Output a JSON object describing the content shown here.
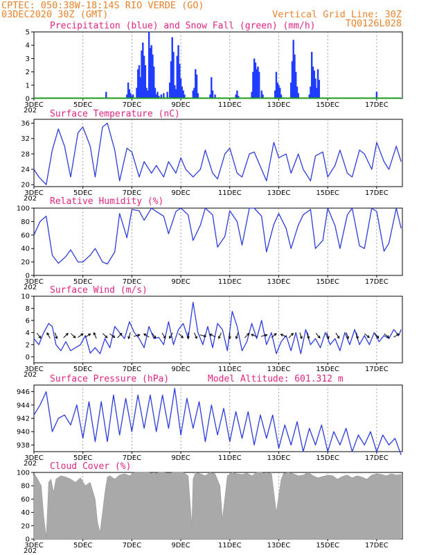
{
  "header": {
    "line1": "CPTEC:   050:38W-18:14S  RIO VERDE (GO)",
    "line2": "03DEC2020 30Z (GMT)",
    "grid_note": "Vertical Grid Line: 30Z",
    "model_id": "TQ0126L028"
  },
  "colors": {
    "header": "#e8822a",
    "titles": "#e0237f",
    "precip": "#1f3cff",
    "snow": "#1a9a1a",
    "line": "#2b3bdc",
    "cloud": "#a9a9a9",
    "arrows": "#000000"
  },
  "x_axis": {
    "labels": [
      "3DEC",
      "5DEC",
      "7DEC",
      "9DEC",
      "11DEC",
      "13DEC",
      "15DEC",
      "17DEC"
    ],
    "year_fragment": "202",
    "start_day": 3,
    "end_day": 18.05,
    "grid_days": [
      5,
      7,
      9,
      11,
      13,
      15,
      17
    ]
  },
  "chart_data": [
    {
      "type": "bar",
      "title": "Precipitation (blue) and Snow Fall (green) (mm/h)",
      "ylim": [
        0,
        5
      ],
      "yticks": [
        "0",
        "1",
        "2",
        "3",
        "4",
        "5"
      ],
      "series": [
        {
          "name": "Precipitation",
          "x": [
            5.95,
            6.8,
            6.85,
            6.9,
            6.95,
            7.0,
            7.05,
            7.2,
            7.25,
            7.3,
            7.35,
            7.4,
            7.45,
            7.5,
            7.55,
            7.6,
            7.65,
            7.7,
            7.75,
            7.8,
            7.85,
            7.9,
            7.95,
            8.0,
            8.05,
            8.1,
            8.2,
            8.3,
            8.45,
            8.55,
            8.6,
            8.65,
            8.7,
            8.75,
            8.8,
            8.85,
            8.9,
            8.95,
            9.0,
            9.05,
            9.1,
            9.15,
            9.5,
            9.55,
            9.6,
            9.65,
            9.7,
            10.2,
            10.25,
            10.3,
            10.4,
            11.25,
            11.3,
            11.35,
            11.9,
            11.95,
            12.0,
            12.05,
            12.1,
            12.15,
            12.2,
            12.3,
            12.35,
            12.85,
            12.9,
            12.95,
            13.0,
            13.05,
            13.1,
            13.5,
            13.55,
            13.6,
            13.65,
            13.7,
            13.75,
            13.8,
            14.25,
            14.3,
            14.35,
            14.4,
            14.45,
            14.5,
            14.55,
            14.6,
            14.65,
            17.0
          ],
          "values": [
            0.5,
            0.3,
            1.2,
            0.7,
            0.4,
            0.2,
            0.3,
            0.8,
            2.2,
            2.5,
            1.6,
            3.6,
            4.2,
            3.2,
            2.5,
            0.8,
            0.6,
            5.0,
            3.8,
            4.0,
            3.3,
            2.4,
            0.8,
            0.3,
            0.5,
            0.2,
            0.3,
            0.4,
            0.5,
            1.2,
            2.8,
            4.6,
            3.5,
            1.0,
            0.7,
            3.2,
            4.0,
            2.6,
            1.5,
            0.9,
            0.6,
            0.3,
            0.6,
            0.8,
            2.2,
            1.8,
            0.4,
            0.3,
            1.6,
            0.6,
            0.3,
            0.3,
            0.6,
            0.2,
            0.5,
            2.0,
            3.0,
            2.7,
            2.2,
            2.4,
            2.0,
            0.6,
            0.3,
            0.6,
            2.0,
            1.2,
            1.0,
            0.8,
            0.3,
            1.2,
            2.8,
            4.4,
            3.3,
            2.0,
            0.9,
            0.4,
            0.3,
            0.9,
            3.5,
            2.4,
            2.1,
            1.5,
            0.8,
            2.2,
            1.4,
            0.5
          ]
        },
        {
          "name": "Snow Fall",
          "x": [
            3.0,
            18.0
          ],
          "values": [
            0,
            0
          ]
        }
      ]
    },
    {
      "type": "line",
      "title": "Surface Temperature (nC)",
      "ylim": [
        19.5,
        37
      ],
      "yticks": [
        "20",
        "24",
        "28",
        "32",
        "36"
      ],
      "x": [
        3.0,
        3.2,
        3.5,
        3.75,
        4.0,
        4.25,
        4.5,
        4.8,
        5.0,
        5.3,
        5.5,
        5.8,
        6.0,
        6.3,
        6.5,
        6.8,
        7.0,
        7.3,
        7.5,
        7.8,
        8.0,
        8.3,
        8.5,
        8.8,
        9.0,
        9.2,
        9.5,
        9.8,
        10.0,
        10.3,
        10.5,
        10.8,
        11.0,
        11.3,
        11.5,
        11.8,
        12.0,
        12.3,
        12.5,
        12.8,
        13.0,
        13.3,
        13.5,
        13.8,
        14.0,
        14.3,
        14.5,
        14.8,
        15.0,
        15.3,
        15.5,
        15.8,
        16.0,
        16.3,
        16.5,
        16.8,
        17.0,
        17.3,
        17.5,
        17.8,
        18.0
      ],
      "values": [
        24.0,
        22.0,
        20.0,
        29.0,
        34.5,
        30.0,
        22.0,
        33.5,
        35.0,
        30.0,
        22.0,
        35.0,
        36.0,
        29.0,
        21.0,
        29.5,
        28.5,
        22.0,
        26.0,
        23.0,
        25.0,
        22.0,
        26.0,
        23.0,
        27.0,
        24.0,
        22.0,
        24.0,
        29.0,
        23.0,
        21.5,
        28.0,
        29.5,
        23.0,
        22.0,
        28.0,
        28.5,
        24.0,
        21.0,
        31.0,
        27.0,
        28.0,
        23.0,
        28.0,
        24.0,
        21.0,
        27.5,
        28.5,
        22.0,
        25.0,
        29.0,
        23.0,
        22.0,
        29.0,
        28.0,
        24.0,
        31.0,
        26.0,
        24.0,
        30.0,
        26.0
      ]
    },
    {
      "type": "line",
      "title": "Relative Humidity (%)",
      "ylim": [
        0,
        100
      ],
      "yticks": [
        "0",
        "20",
        "40",
        "60",
        "80",
        "100"
      ],
      "x": [
        3.0,
        3.25,
        3.5,
        3.75,
        4.0,
        4.3,
        4.5,
        4.8,
        5.0,
        5.3,
        5.5,
        5.8,
        6.0,
        6.3,
        6.5,
        6.8,
        7.0,
        7.3,
        7.5,
        7.8,
        8.0,
        8.3,
        8.5,
        8.8,
        9.0,
        9.3,
        9.5,
        9.8,
        10.0,
        10.3,
        10.5,
        10.8,
        11.0,
        11.3,
        11.5,
        11.8,
        12.0,
        12.3,
        12.5,
        12.8,
        13.0,
        13.3,
        13.5,
        13.8,
        14.0,
        14.3,
        14.5,
        14.8,
        15.0,
        15.3,
        15.5,
        15.8,
        16.0,
        16.3,
        16.5,
        16.8,
        17.0,
        17.3,
        17.5,
        17.8,
        18.0
      ],
      "values": [
        60.0,
        80.0,
        88.0,
        30.0,
        18.0,
        28.0,
        38.0,
        20.0,
        20.0,
        30.0,
        40.0,
        20.0,
        17.0,
        35.0,
        92.0,
        56.0,
        98.0,
        96.0,
        82.0,
        100.0,
        95.0,
        88.0,
        62.0,
        95.0,
        100.0,
        90.0,
        52.0,
        75.0,
        100.0,
        90.0,
        42.0,
        58.0,
        96.0,
        80.0,
        45.0,
        100.0,
        100.0,
        88.0,
        35.0,
        76.0,
        92.0,
        70.0,
        40.0,
        75.0,
        90.0,
        98.0,
        40.0,
        52.0,
        100.0,
        74.0,
        40.0,
        90.0,
        100.0,
        44.0,
        40.0,
        100.0,
        95.0,
        36.0,
        48.0,
        100.0,
        70.0
      ]
    },
    {
      "type": "line",
      "title": "Surface Wind (m/s)",
      "ylim": [
        -1,
        10
      ],
      "yticks": [
        "0",
        "2",
        "4",
        "6",
        "8",
        "10"
      ],
      "x": [
        3.0,
        3.2,
        3.4,
        3.6,
        3.75,
        3.9,
        4.1,
        4.3,
        4.5,
        4.7,
        4.9,
        5.1,
        5.3,
        5.5,
        5.7,
        5.9,
        6.1,
        6.3,
        6.5,
        6.7,
        6.9,
        7.1,
        7.3,
        7.5,
        7.7,
        7.9,
        8.1,
        8.3,
        8.5,
        8.7,
        8.9,
        9.1,
        9.3,
        9.5,
        9.7,
        9.9,
        10.1,
        10.3,
        10.5,
        10.7,
        10.9,
        11.1,
        11.3,
        11.5,
        11.7,
        11.9,
        12.1,
        12.3,
        12.5,
        12.7,
        12.9,
        13.1,
        13.3,
        13.5,
        13.7,
        13.9,
        14.1,
        14.3,
        14.5,
        14.7,
        14.9,
        15.1,
        15.3,
        15.5,
        15.7,
        15.9,
        16.1,
        16.3,
        16.5,
        16.7,
        16.9,
        17.1,
        17.3,
        17.5,
        17.7,
        17.9,
        18.0
      ],
      "values": [
        3.0,
        2.0,
        4.0,
        5.5,
        5.0,
        2.0,
        1.0,
        2.5,
        1.0,
        1.5,
        2.0,
        3.5,
        0.6,
        1.5,
        0.5,
        3.0,
        1.5,
        5.0,
        4.0,
        3.0,
        5.8,
        4.0,
        3.0,
        1.5,
        5.0,
        3.0,
        3.2,
        2.0,
        5.8,
        2.0,
        4.5,
        5.5,
        3.0,
        9.0,
        4.0,
        2.0,
        5.0,
        1.5,
        5.5,
        4.5,
        1.0,
        7.5,
        5.0,
        1.0,
        2.5,
        5.5,
        3.0,
        6.0,
        2.0,
        4.0,
        0.5,
        2.5,
        3.5,
        1.0,
        4.0,
        0.5,
        4.5,
        2.0,
        3.0,
        1.5,
        4.0,
        2.0,
        3.0,
        1.0,
        4.0,
        2.0,
        4.5,
        2.0,
        3.5,
        2.0,
        4.0,
        2.5,
        3.5,
        3.0,
        4.5,
        3.5,
        4.5
      ]
    },
    {
      "type": "line",
      "title": "Surface Pressure (hPa)",
      "annotation": "Model Altitude: 601.312 m",
      "ylim": [
        937,
        947
      ],
      "yticks": [
        "938",
        "940",
        "942",
        "944",
        "946"
      ],
      "x": [
        3.0,
        3.25,
        3.5,
        3.75,
        4.0,
        4.25,
        4.5,
        4.75,
        5.0,
        5.25,
        5.5,
        5.75,
        6.0,
        6.25,
        6.5,
        6.75,
        7.0,
        7.25,
        7.5,
        7.75,
        8.0,
        8.25,
        8.5,
        8.75,
        9.0,
        9.25,
        9.5,
        9.75,
        10.0,
        10.25,
        10.5,
        10.75,
        11.0,
        11.25,
        11.5,
        11.75,
        12.0,
        12.25,
        12.5,
        12.75,
        13.0,
        13.25,
        13.5,
        13.75,
        14.0,
        14.25,
        14.5,
        14.75,
        15.0,
        15.25,
        15.5,
        15.75,
        16.0,
        16.25,
        16.5,
        16.75,
        17.0,
        17.25,
        17.5,
        17.75,
        18.0
      ],
      "values": [
        942.5,
        944.0,
        946.0,
        940.0,
        942.0,
        942.5,
        941.0,
        944.0,
        939.0,
        944.5,
        938.5,
        944.5,
        938.5,
        945.5,
        939.5,
        945.0,
        940.0,
        945.5,
        940.5,
        945.5,
        940.0,
        945.5,
        940.5,
        946.5,
        939.5,
        945.0,
        940.5,
        944.5,
        938.5,
        944.0,
        939.5,
        943.5,
        938.5,
        943.0,
        939.0,
        943.0,
        938.0,
        942.5,
        939.0,
        942.5,
        937.5,
        941.0,
        938.0,
        941.5,
        937.0,
        940.5,
        938.0,
        941.0,
        937.0,
        940.0,
        938.0,
        940.5,
        937.0,
        939.5,
        938.0,
        940.0,
        937.0,
        939.5,
        938.0,
        939.0,
        936.5
      ]
    },
    {
      "type": "area",
      "title": "Cloud Cover (%)",
      "ylim": [
        0,
        100
      ],
      "yticks": [
        "0",
        "20",
        "40",
        "60",
        "80",
        "100"
      ],
      "x": [
        3.0,
        3.05,
        3.15,
        3.3,
        3.4,
        3.5,
        3.55,
        3.6,
        3.7,
        3.8,
        3.9,
        4.1,
        4.3,
        4.5,
        4.7,
        4.9,
        5.1,
        5.3,
        5.5,
        5.6,
        5.7,
        5.8,
        5.9,
        6.0,
        6.1,
        6.3,
        6.5,
        6.7,
        6.9,
        7.1,
        7.3,
        7.5,
        7.7,
        7.9,
        8.1,
        8.3,
        8.5,
        8.7,
        8.9,
        9.1,
        9.3,
        9.45,
        9.5,
        9.6,
        9.8,
        10.0,
        10.2,
        10.4,
        10.6,
        10.7,
        10.9,
        11.1,
        11.3,
        11.5,
        11.7,
        11.9,
        12.1,
        12.3,
        12.5,
        12.7,
        12.9,
        13.1,
        13.2,
        13.4,
        13.6,
        13.8,
        14.0,
        14.2,
        14.4,
        14.6,
        14.8,
        15.0,
        15.2,
        15.4,
        15.6,
        15.8,
        16.0,
        16.2,
        16.4,
        16.6,
        16.8,
        17.0,
        17.2,
        17.4,
        17.6,
        17.8,
        18.0
      ],
      "values": [
        95.0,
        96.0,
        90.0,
        80.0,
        35.0,
        3.0,
        40.0,
        85.0,
        90.0,
        70.0,
        90.0,
        95.0,
        93.0,
        90.0,
        85.0,
        92.0,
        80.0,
        85.0,
        60.0,
        25.0,
        10.0,
        40.0,
        70.0,
        93.0,
        95.0,
        90.0,
        96.0,
        98.0,
        95.0,
        100.0,
        100.0,
        100.0,
        100.0,
        98.0,
        100.0,
        100.0,
        99.0,
        100.0,
        100.0,
        100.0,
        95.0,
        20.0,
        90.0,
        100.0,
        98.0,
        95.0,
        100.0,
        98.0,
        80.0,
        30.0,
        95.0,
        100.0,
        98.0,
        97.0,
        99.0,
        95.0,
        100.0,
        100.0,
        98.0,
        100.0,
        40.0,
        90.0,
        99.0,
        100.0,
        98.0,
        95.0,
        96.0,
        100.0,
        95.0,
        92.0,
        94.0,
        96.0,
        95.0,
        90.0,
        94.0,
        96.0,
        92.0,
        95.0,
        93.0,
        90.0,
        96.0,
        98.0,
        97.0,
        95.0,
        98.0,
        96.0,
        97.0
      ]
    }
  ],
  "wind_vectors": {
    "x": [
      3.2,
      3.6,
      3.9,
      4.3,
      4.6,
      4.9,
      5.2,
      5.5,
      5.9,
      6.2,
      6.5,
      6.9,
      7.2,
      7.6,
      7.9,
      8.3,
      8.6,
      9.0,
      9.3,
      9.6,
      9.9,
      10.3,
      10.6,
      11.0,
      11.3,
      11.7,
      12.0,
      12.4,
      12.8,
      13.2,
      13.5,
      13.9,
      14.2,
      14.6,
      15.0,
      15.4,
      15.8,
      16.2,
      16.6,
      17.0,
      17.4,
      17.8
    ],
    "u": [
      0.6,
      -0.5,
      0.3,
      0.7,
      0.6,
      0.8,
      0.8,
      -0.4,
      0.7,
      0.8,
      0.7,
      -0.3,
      0.8,
      -0.8,
      0.6,
      0.5,
      -0.5,
      0.6,
      0.0,
      0.4,
      0.8,
      -0.8,
      -0.4,
      0.0,
      -0.3,
      0.6,
      -0.8,
      0.8,
      0.6,
      -0.7,
      0.5,
      0.3,
      0.2,
      0.6,
      0.3,
      0.5,
      0.3,
      0.2,
      0.6,
      0.5,
      0.6,
      0.8
    ],
    "v": [
      -0.8,
      0.9,
      -0.9,
      0.7,
      -0.6,
      0.6,
      0.5,
      0.9,
      -0.7,
      -0.6,
      0.7,
      -0.9,
      0.2,
      0.5,
      -0.8,
      -0.8,
      -0.8,
      -0.6,
      -1.0,
      -0.9,
      -0.2,
      0.4,
      -0.9,
      -1.0,
      -0.9,
      0.6,
      0.3,
      0.2,
      0.5,
      0.3,
      0.5,
      -0.9,
      -1.0,
      -0.7,
      -0.9,
      -0.8,
      -0.9,
      -0.9,
      -0.5,
      -0.6,
      -0.5,
      0.5
    ]
  }
}
